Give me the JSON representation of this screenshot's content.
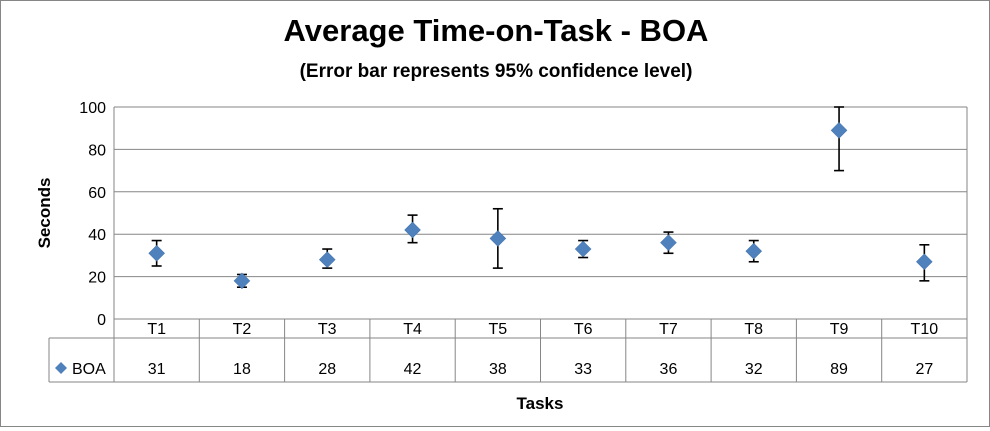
{
  "chart_data": {
    "type": "scatter",
    "title": "Average Time-on-Task - BOA",
    "subtitle": "(Error bar represents 95% confidence level)",
    "xlabel": "Tasks",
    "ylabel": "Seconds",
    "ylim": [
      0,
      100
    ],
    "yticks": [
      0,
      20,
      40,
      60,
      80,
      100
    ],
    "grid": true,
    "categories": [
      "T1",
      "T2",
      "T3",
      "T4",
      "T5",
      "T6",
      "T7",
      "T8",
      "T9",
      "T10"
    ],
    "series": [
      {
        "name": "BOA",
        "color": "#4F81BD",
        "marker": "diamond",
        "values": [
          31,
          18,
          28,
          42,
          38,
          33,
          36,
          32,
          89,
          27
        ],
        "value_labels": [
          "31",
          "18",
          "28",
          "42",
          "38",
          "33",
          "36",
          "32",
          "89",
          "27"
        ],
        "error_low": [
          25,
          15,
          24,
          36,
          24,
          29,
          31,
          27,
          70,
          18
        ],
        "error_high": [
          37,
          21,
          33,
          49,
          52,
          37,
          41,
          37,
          100,
          35
        ]
      }
    ],
    "data_table": true
  }
}
